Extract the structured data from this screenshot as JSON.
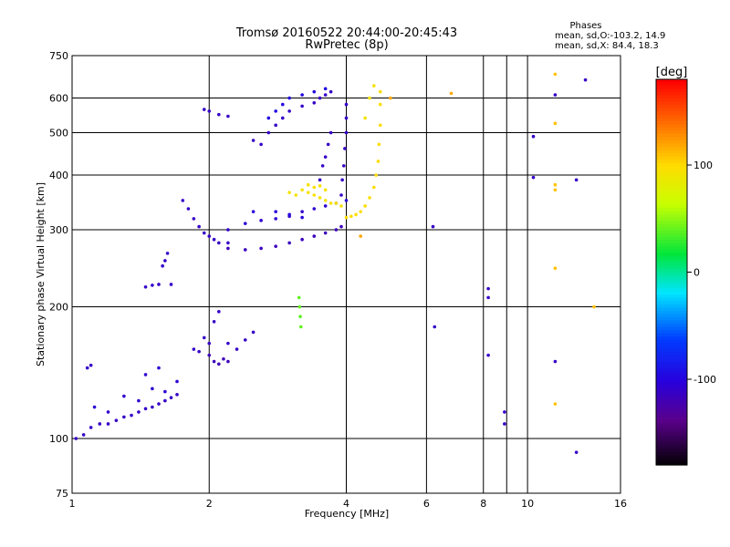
{
  "chart_data": {
    "type": "scatter",
    "title": "Tromsø 20160522 20:44:00-20:45:43",
    "subtitle": "RwPretec (8p)",
    "xlabel": "Frequency [MHz]",
    "ylabel": "Stationary phase Virtual Height [km]",
    "x_scale": "log",
    "y_scale": "log",
    "xlim": [
      1,
      16
    ],
    "ylim": [
      75,
      750
    ],
    "x_ticks": [
      "1",
      "2",
      "4",
      "6",
      "8",
      "10",
      "16"
    ],
    "x_tick_values": [
      1,
      2,
      4,
      6,
      8,
      10,
      16
    ],
    "y_ticks": [
      "750",
      "600",
      "500",
      "400",
      "300",
      "200",
      "100",
      "75"
    ],
    "y_tick_values": [
      750,
      600,
      500,
      400,
      300,
      200,
      100,
      75
    ],
    "grid": true,
    "stats": {
      "header": "Phases",
      "o_line": "mean, sd,O:-103.2, 14.9",
      "x_line": "mean, sd,X: 84.4, 18.3"
    },
    "colorbar": {
      "label": "[deg]",
      "range": [
        -180,
        180
      ],
      "ticks": [
        "100",
        "0",
        "-100"
      ],
      "tick_values": [
        100,
        0,
        -100
      ]
    },
    "traces": [
      {
        "phase": -110,
        "points": [
          [
            1.02,
            100
          ],
          [
            1.06,
            102
          ],
          [
            1.1,
            106
          ],
          [
            1.15,
            108
          ],
          [
            1.2,
            108
          ],
          [
            1.25,
            110
          ],
          [
            1.3,
            112
          ],
          [
            1.35,
            113
          ],
          [
            1.4,
            115
          ],
          [
            1.45,
            117
          ],
          [
            1.5,
            118
          ],
          [
            1.55,
            120
          ],
          [
            1.6,
            122
          ],
          [
            1.65,
            124
          ],
          [
            1.7,
            126
          ]
        ]
      },
      {
        "phase": -105,
        "points": [
          [
            1.12,
            118
          ],
          [
            1.2,
            115
          ],
          [
            1.3,
            125
          ],
          [
            1.4,
            122
          ],
          [
            1.5,
            130
          ],
          [
            1.6,
            128
          ],
          [
            1.7,
            135
          ],
          [
            1.45,
            140
          ],
          [
            1.55,
            145
          ]
        ]
      },
      {
        "phase": -110,
        "points": [
          [
            1.08,
            145
          ],
          [
            1.1,
            147
          ]
        ]
      },
      {
        "phase": -110,
        "points": [
          [
            1.45,
            222
          ],
          [
            1.5,
            224
          ],
          [
            1.55,
            225
          ],
          [
            1.58,
            248
          ],
          [
            1.6,
            255
          ],
          [
            1.62,
            265
          ],
          [
            1.65,
            225
          ]
        ]
      },
      {
        "phase": -110,
        "points": [
          [
            1.85,
            160
          ],
          [
            1.9,
            158
          ],
          [
            1.95,
            170
          ],
          [
            2.0,
            165
          ],
          [
            2.05,
            185
          ],
          [
            2.1,
            195
          ],
          [
            2.2,
            165
          ],
          [
            2.3,
            160
          ],
          [
            2.4,
            168
          ],
          [
            2.5,
            175
          ]
        ]
      },
      {
        "phase": -115,
        "points": [
          [
            2.0,
            155
          ],
          [
            2.05,
            150
          ],
          [
            2.1,
            148
          ],
          [
            2.15,
            152
          ],
          [
            2.2,
            150
          ]
        ]
      },
      {
        "phase": -110,
        "points": [
          [
            1.75,
            350
          ],
          [
            1.8,
            335
          ],
          [
            1.85,
            318
          ],
          [
            1.9,
            305
          ],
          [
            1.95,
            295
          ],
          [
            2.0,
            290
          ],
          [
            2.05,
            285
          ],
          [
            2.1,
            280
          ],
          [
            2.2,
            280
          ]
        ]
      },
      {
        "phase": -115,
        "points": [
          [
            2.2,
            272
          ],
          [
            2.4,
            270
          ],
          [
            2.6,
            272
          ],
          [
            2.8,
            275
          ],
          [
            3.0,
            280
          ],
          [
            3.2,
            285
          ],
          [
            3.4,
            290
          ],
          [
            3.6,
            295
          ],
          [
            3.8,
            300
          ],
          [
            3.9,
            305
          ]
        ]
      },
      {
        "phase": -105,
        "points": [
          [
            2.2,
            300
          ],
          [
            2.4,
            310
          ],
          [
            2.6,
            315
          ],
          [
            2.8,
            318
          ],
          [
            3.0,
            322
          ],
          [
            3.2,
            330
          ],
          [
            3.4,
            335
          ],
          [
            3.6,
            340
          ],
          [
            3.8,
            345
          ],
          [
            4.0,
            350
          ]
        ]
      },
      {
        "phase": -100,
        "points": [
          [
            2.5,
            330
          ],
          [
            2.8,
            330
          ],
          [
            3.0,
            325
          ],
          [
            3.2,
            320
          ]
        ]
      },
      {
        "phase": -110,
        "points": [
          [
            3.9,
            360
          ],
          [
            3.92,
            390
          ],
          [
            3.95,
            420
          ],
          [
            3.97,
            460
          ],
          [
            4.0,
            500
          ],
          [
            4.0,
            540
          ],
          [
            4.0,
            580
          ]
        ]
      },
      {
        "phase": -110,
        "points": [
          [
            3.5,
            390
          ],
          [
            3.55,
            420
          ],
          [
            3.6,
            440
          ],
          [
            3.65,
            470
          ],
          [
            3.7,
            500
          ]
        ]
      },
      {
        "phase": -110,
        "points": [
          [
            2.5,
            480
          ],
          [
            2.6,
            470
          ],
          [
            2.7,
            500
          ],
          [
            2.8,
            520
          ],
          [
            2.9,
            540
          ],
          [
            3.0,
            560
          ],
          [
            3.2,
            575
          ],
          [
            3.4,
            585
          ],
          [
            3.5,
            600
          ],
          [
            3.6,
            610
          ],
          [
            3.7,
            620
          ]
        ]
      },
      {
        "phase": -95,
        "points": [
          [
            2.9,
            580
          ],
          [
            3.0,
            600
          ],
          [
            3.2,
            610
          ],
          [
            3.4,
            620
          ],
          [
            3.6,
            630
          ],
          [
            2.8,
            560
          ],
          [
            2.7,
            540
          ]
        ]
      },
      {
        "phase": -110,
        "points": [
          [
            1.95,
            565
          ],
          [
            2.0,
            560
          ],
          [
            2.1,
            550
          ],
          [
            2.2,
            545
          ]
        ]
      },
      {
        "phase": 95,
        "points": [
          [
            3.2,
            370
          ],
          [
            3.3,
            365
          ],
          [
            3.4,
            360
          ],
          [
            3.5,
            355
          ],
          [
            3.6,
            350
          ],
          [
            3.7,
            345
          ],
          [
            3.3,
            380
          ],
          [
            3.4,
            375
          ],
          [
            3.5,
            378
          ],
          [
            3.0,
            365
          ],
          [
            3.1,
            360
          ],
          [
            3.6,
            370
          ],
          [
            3.8,
            345
          ],
          [
            3.9,
            340
          ]
        ]
      },
      {
        "phase": 100,
        "points": [
          [
            4.0,
            320
          ],
          [
            4.1,
            322
          ],
          [
            4.2,
            325
          ],
          [
            4.3,
            330
          ],
          [
            4.4,
            340
          ],
          [
            4.5,
            355
          ],
          [
            4.6,
            375
          ],
          [
            4.65,
            400
          ],
          [
            4.7,
            430
          ],
          [
            4.72,
            470
          ],
          [
            4.75,
            520
          ],
          [
            4.75,
            580
          ],
          [
            4.75,
            620
          ]
        ]
      },
      {
        "phase": 95,
        "points": [
          [
            4.5,
            600
          ],
          [
            4.6,
            640
          ],
          [
            4.4,
            540
          ]
        ]
      },
      {
        "phase": 40,
        "points": [
          [
            3.15,
            210
          ],
          [
            3.16,
            200
          ],
          [
            3.17,
            190
          ],
          [
            3.18,
            180
          ]
        ]
      },
      {
        "phase": -110,
        "points": [
          [
            6.2,
            305
          ],
          [
            6.25,
            180
          ],
          [
            8.2,
            210
          ],
          [
            8.2,
            220
          ],
          [
            8.2,
            155
          ],
          [
            8.9,
            115
          ],
          [
            8.9,
            108
          ],
          [
            10.3,
            395
          ],
          [
            10.3,
            490
          ]
        ]
      },
      {
        "phase": 110,
        "points": [
          [
            11.5,
            680
          ],
          [
            11.5,
            525
          ],
          [
            11.5,
            380
          ],
          [
            11.5,
            370
          ],
          [
            11.5,
            245
          ],
          [
            11.5,
            120
          ],
          [
            14.0,
            200
          ]
        ]
      },
      {
        "phase": -110,
        "points": [
          [
            11.5,
            610
          ],
          [
            11.5,
            150
          ],
          [
            12.8,
            390
          ],
          [
            13.4,
            660
          ],
          [
            12.8,
            93
          ]
        ]
      },
      {
        "phase": 120,
        "points": [
          [
            4.3,
            290
          ],
          [
            5.0,
            600
          ],
          [
            6.8,
            615
          ]
        ]
      }
    ]
  }
}
